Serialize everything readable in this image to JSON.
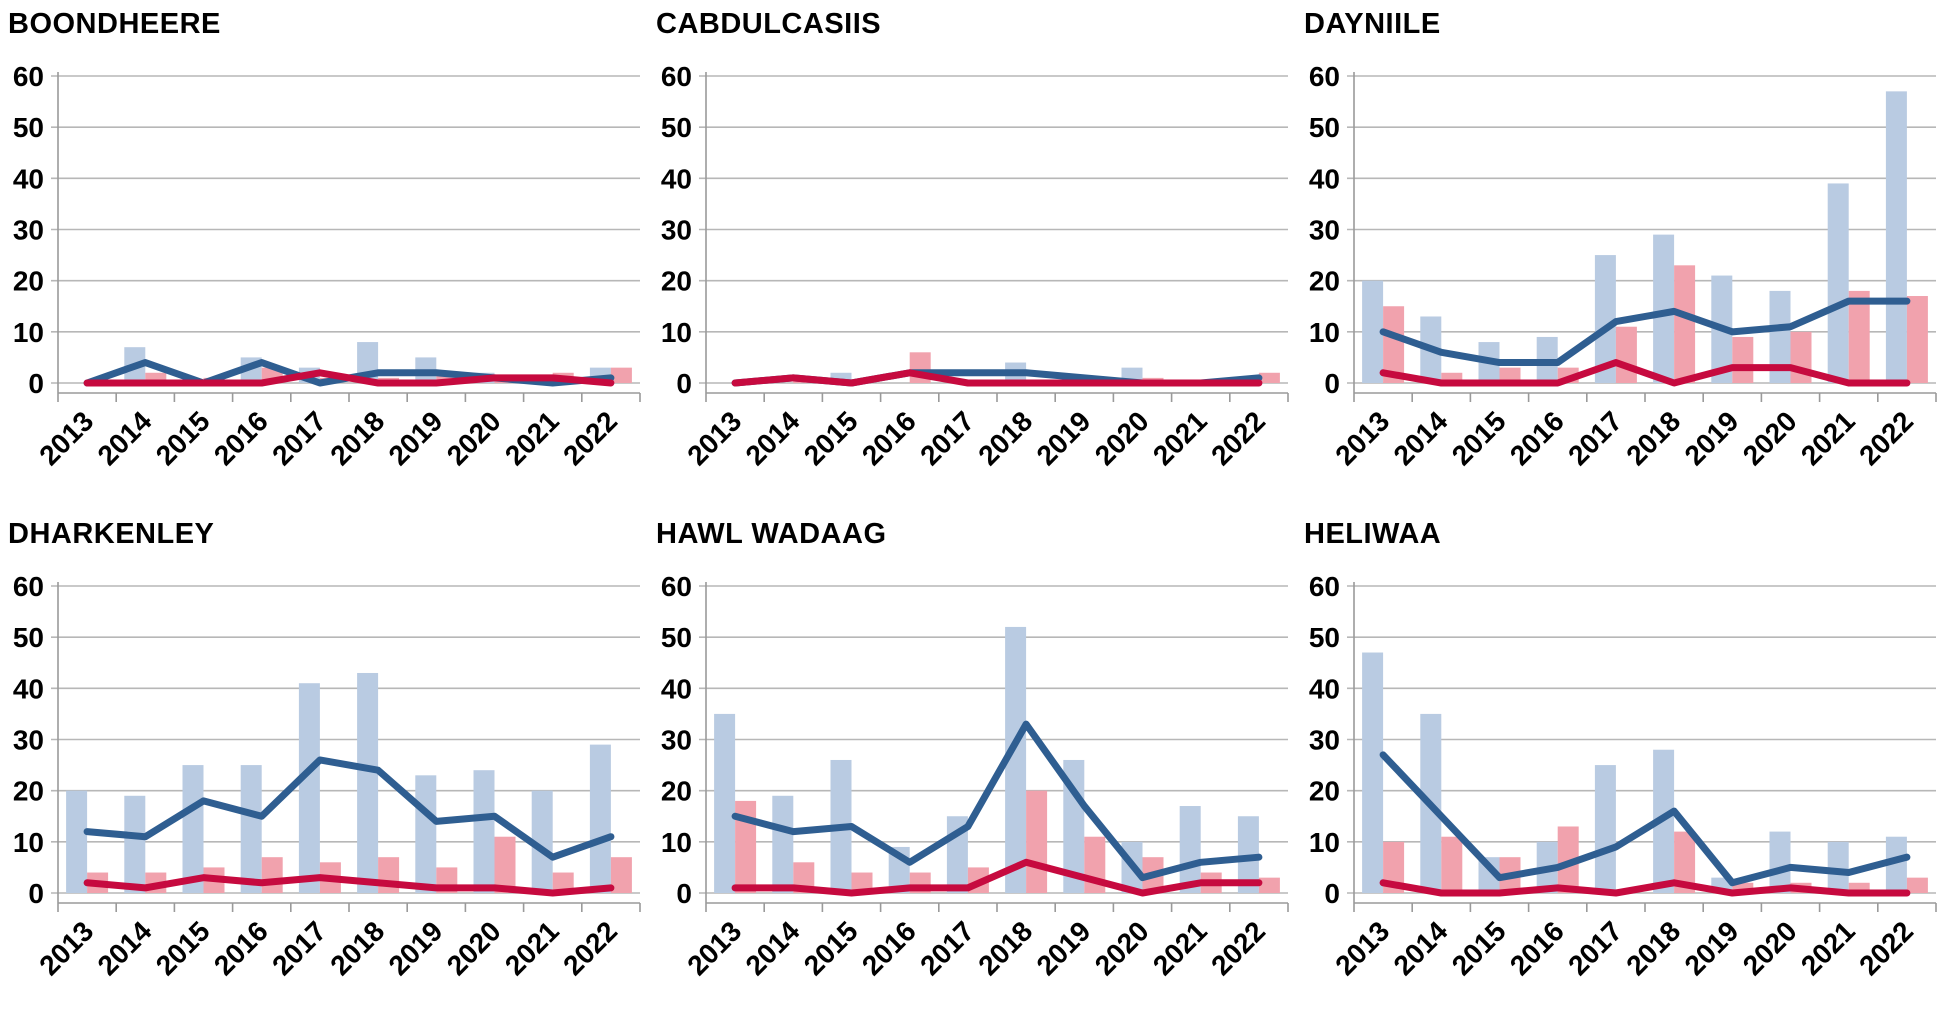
{
  "chart_data": [
    {
      "type": "bar",
      "title": "BOONDHEERE",
      "categories": [
        "2013",
        "2014",
        "2015",
        "2016",
        "2017",
        "2018",
        "2019",
        "2020",
        "2021",
        "2022"
      ],
      "ylim": [
        0,
        60
      ],
      "yticks": [
        0,
        10,
        20,
        30,
        40,
        50,
        60
      ],
      "grid": "horizontal",
      "legend": "none",
      "series": [
        {
          "name": "blue-bars",
          "kind": "bar",
          "color": "#b9cbe2",
          "values": [
            0,
            7,
            0,
            5,
            3,
            8,
            5,
            2,
            1,
            3
          ]
        },
        {
          "name": "pink-bars",
          "kind": "bar",
          "color": "#f1a2ad",
          "values": [
            0,
            2,
            1,
            3,
            1,
            1,
            2,
            1,
            2,
            3
          ]
        },
        {
          "name": "blue-line",
          "kind": "line",
          "color": "#2f5e91",
          "values": [
            0,
            4,
            0,
            4,
            0,
            2,
            2,
            1,
            0,
            1
          ]
        },
        {
          "name": "red-line",
          "kind": "line",
          "color": "#c60a3f",
          "values": [
            0,
            0,
            0,
            0,
            2,
            0,
            0,
            1,
            1,
            0
          ]
        }
      ]
    },
    {
      "type": "bar",
      "title": "CABDULCASIIS",
      "categories": [
        "2013",
        "2014",
        "2015",
        "2016",
        "2017",
        "2018",
        "2019",
        "2020",
        "2021",
        "2022"
      ],
      "ylim": [
        0,
        60
      ],
      "yticks": [
        0,
        10,
        20,
        30,
        40,
        50,
        60
      ],
      "grid": "horizontal",
      "legend": "none",
      "series": [
        {
          "name": "blue-bars",
          "kind": "bar",
          "color": "#b9cbe2",
          "values": [
            0,
            0,
            2,
            0,
            0,
            4,
            0,
            3,
            0,
            0
          ]
        },
        {
          "name": "pink-bars",
          "kind": "bar",
          "color": "#f1a2ad",
          "values": [
            0,
            1,
            0,
            6,
            0,
            0,
            0,
            1,
            0,
            2
          ]
        },
        {
          "name": "blue-line",
          "kind": "line",
          "color": "#2f5e91",
          "values": [
            0,
            1,
            0,
            2,
            2,
            2,
            1,
            0,
            0,
            1
          ]
        },
        {
          "name": "red-line",
          "kind": "line",
          "color": "#c60a3f",
          "values": [
            0,
            1,
            0,
            2,
            0,
            0,
            0,
            0,
            0,
            0
          ]
        }
      ]
    },
    {
      "type": "bar",
      "title": "DAYNIILE",
      "categories": [
        "2013",
        "2014",
        "2015",
        "2016",
        "2017",
        "2018",
        "2019",
        "2020",
        "2021",
        "2022"
      ],
      "ylim": [
        0,
        60
      ],
      "yticks": [
        0,
        10,
        20,
        30,
        40,
        50,
        60
      ],
      "grid": "horizontal",
      "legend": "none",
      "series": [
        {
          "name": "blue-bars",
          "kind": "bar",
          "color": "#b9cbe2",
          "values": [
            20,
            13,
            8,
            9,
            25,
            29,
            21,
            18,
            39,
            57
          ]
        },
        {
          "name": "pink-bars",
          "kind": "bar",
          "color": "#f1a2ad",
          "values": [
            15,
            2,
            3,
            3,
            11,
            23,
            9,
            10,
            18,
            17
          ]
        },
        {
          "name": "blue-line",
          "kind": "line",
          "color": "#2f5e91",
          "values": [
            10,
            6,
            4,
            4,
            12,
            14,
            10,
            11,
            16,
            16
          ]
        },
        {
          "name": "red-line",
          "kind": "line",
          "color": "#c60a3f",
          "values": [
            2,
            0,
            0,
            0,
            4,
            0,
            3,
            3,
            0,
            0
          ]
        }
      ]
    },
    {
      "type": "bar",
      "title": "DHARKENLEY",
      "categories": [
        "2013",
        "2014",
        "2015",
        "2016",
        "2017",
        "2018",
        "2019",
        "2020",
        "2021",
        "2022"
      ],
      "ylim": [
        0,
        60
      ],
      "yticks": [
        0,
        10,
        20,
        30,
        40,
        50,
        60
      ],
      "grid": "horizontal",
      "legend": "none",
      "series": [
        {
          "name": "blue-bars",
          "kind": "bar",
          "color": "#b9cbe2",
          "values": [
            20,
            19,
            25,
            25,
            41,
            43,
            23,
            24,
            20,
            29
          ]
        },
        {
          "name": "pink-bars",
          "kind": "bar",
          "color": "#f1a2ad",
          "values": [
            4,
            4,
            5,
            7,
            6,
            7,
            5,
            11,
            4,
            7
          ]
        },
        {
          "name": "blue-line",
          "kind": "line",
          "color": "#2f5e91",
          "values": [
            12,
            11,
            18,
            15,
            26,
            24,
            14,
            15,
            7,
            11
          ]
        },
        {
          "name": "red-line",
          "kind": "line",
          "color": "#c60a3f",
          "values": [
            2,
            1,
            3,
            2,
            3,
            2,
            1,
            1,
            0,
            1
          ]
        }
      ]
    },
    {
      "type": "bar",
      "title": "HAWL WADAAG",
      "categories": [
        "2013",
        "2014",
        "2015",
        "2016",
        "2017",
        "2018",
        "2019",
        "2020",
        "2021",
        "2022"
      ],
      "ylim": [
        0,
        60
      ],
      "yticks": [
        0,
        10,
        20,
        30,
        40,
        50,
        60
      ],
      "grid": "horizontal",
      "legend": "none",
      "series": [
        {
          "name": "blue-bars",
          "kind": "bar",
          "color": "#b9cbe2",
          "values": [
            35,
            19,
            26,
            9,
            15,
            52,
            26,
            10,
            17,
            15
          ]
        },
        {
          "name": "pink-bars",
          "kind": "bar",
          "color": "#f1a2ad",
          "values": [
            18,
            6,
            4,
            4,
            5,
            20,
            11,
            7,
            4,
            3
          ]
        },
        {
          "name": "blue-line",
          "kind": "line",
          "color": "#2f5e91",
          "values": [
            15,
            12,
            13,
            6,
            13,
            33,
            17,
            3,
            6,
            7
          ]
        },
        {
          "name": "red-line",
          "kind": "line",
          "color": "#c60a3f",
          "values": [
            1,
            1,
            0,
            1,
            1,
            6,
            3,
            0,
            2,
            2
          ]
        }
      ]
    },
    {
      "type": "bar",
      "title": "HELIWAA",
      "categories": [
        "2013",
        "2014",
        "2015",
        "2016",
        "2017",
        "2018",
        "2019",
        "2020",
        "2021",
        "2022"
      ],
      "ylim": [
        0,
        60
      ],
      "yticks": [
        0,
        10,
        20,
        30,
        40,
        50,
        60
      ],
      "grid": "horizontal",
      "legend": "none",
      "series": [
        {
          "name": "blue-bars",
          "kind": "bar",
          "color": "#b9cbe2",
          "values": [
            47,
            35,
            7,
            10,
            25,
            28,
            3,
            12,
            10,
            11
          ]
        },
        {
          "name": "pink-bars",
          "kind": "bar",
          "color": "#f1a2ad",
          "values": [
            10,
            11,
            7,
            13,
            0,
            12,
            2,
            2,
            2,
            3
          ]
        },
        {
          "name": "blue-line",
          "kind": "line",
          "color": "#2f5e91",
          "values": [
            27,
            15,
            3,
            5,
            9,
            16,
            2,
            5,
            4,
            7
          ]
        },
        {
          "name": "red-line",
          "kind": "line",
          "color": "#c60a3f",
          "values": [
            2,
            0,
            0,
            1,
            0,
            2,
            0,
            1,
            0,
            0
          ]
        }
      ]
    }
  ],
  "style": {
    "gridline_color": "#b7b7b7",
    "axis_color": "#9a9a9a",
    "text_color": "#000000",
    "background": "#ffffff"
  }
}
